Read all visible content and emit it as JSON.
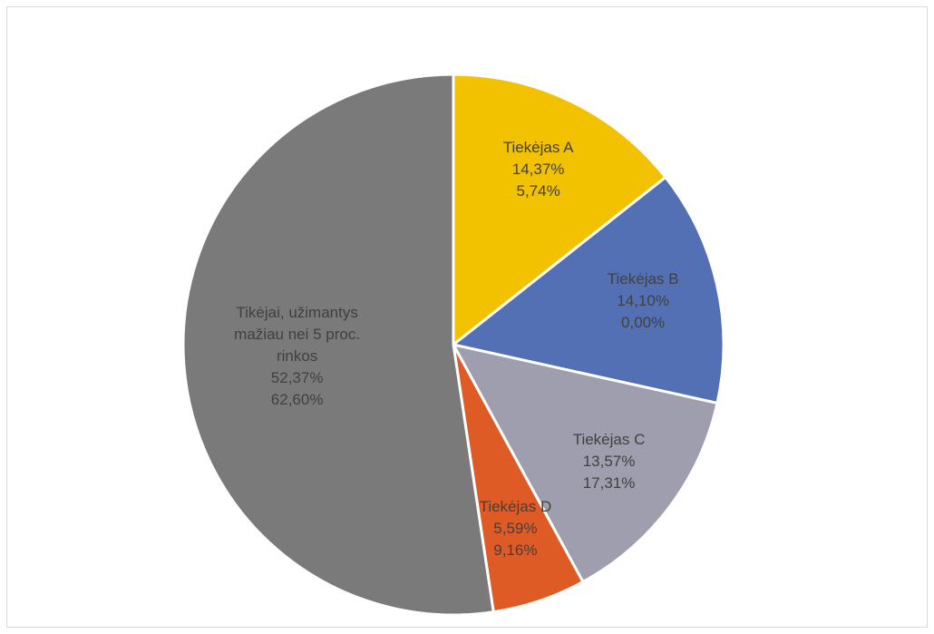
{
  "chart_data": {
    "type": "pie",
    "categories": [
      "Tiekėjas A",
      "Tiekėjas B",
      "Tiekėjas C",
      "Tiekėjas D",
      "Tikėjai, užimantys mažiau nei 5 proc. rinkos"
    ],
    "values": [
      14.37,
      14.1,
      13.57,
      5.59,
      52.37
    ],
    "value_labels": [
      "14,37%",
      "14,10%",
      "13,57%",
      "5,59%",
      "52,37%"
    ],
    "second_values": [
      5.74,
      0.0,
      17.31,
      9.16,
      62.6
    ],
    "second_value_labels": [
      "5,74%",
      "0,00%",
      "17,31%",
      "9,16%",
      "62,60%"
    ],
    "colors": [
      "#f2c100",
      "#5470b5",
      "#9e9eae",
      "#de5b26",
      "#7a7a7a"
    ]
  }
}
